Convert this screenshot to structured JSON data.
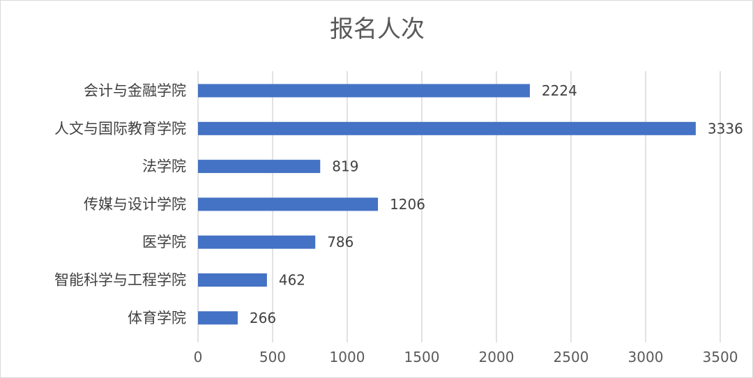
{
  "chart_data": {
    "type": "bar",
    "orientation": "horizontal",
    "title": "报名人次",
    "categories": [
      "会计与金融学院",
      "人文与国际教育学院",
      "法学院",
      "传媒与设计学院",
      "医学院",
      "智能科学与工程学院",
      "体育学院"
    ],
    "values": [
      2224,
      3336,
      819,
      1206,
      786,
      462,
      266
    ],
    "xlim": [
      0,
      3500
    ],
    "xticks": [
      0,
      500,
      1000,
      1500,
      2000,
      2500,
      3000,
      3500
    ],
    "xlabel": "",
    "ylabel": "",
    "grid": "vertical",
    "legend": "none",
    "data_labels": true,
    "bar_color": "#4472c4"
  }
}
